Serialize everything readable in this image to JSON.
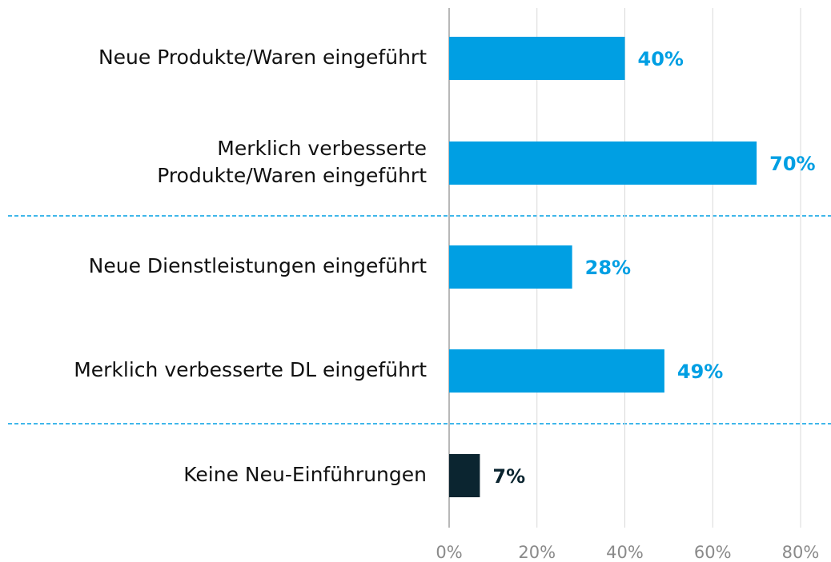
{
  "chart_data": {
    "type": "hbar",
    "categories": [
      "Neue Produkte/Waren eingeführt",
      "Merklich verbesserte\nProdukte/Waren eingeführt",
      "Neue Dienstleistungen eingeführt",
      "Merklich verbesserte DL eingeführt",
      "Keine Neu-Einführungen"
    ],
    "values": [
      40,
      70,
      28,
      49,
      7
    ],
    "value_labels": [
      "40%",
      "70%",
      "28%",
      "49%",
      "7%"
    ],
    "colors": [
      "#009fe3",
      "#009fe3",
      "#009fe3",
      "#009fe3",
      "#0b2530"
    ],
    "xlim": [
      0,
      80
    ],
    "xticks": [
      {
        "value": 0,
        "label": "0%"
      },
      {
        "value": 20,
        "label": "20%"
      },
      {
        "value": 40,
        "label": "40%"
      },
      {
        "value": 60,
        "label": "60%"
      },
      {
        "value": 80,
        "label": "80%"
      }
    ],
    "grid": true
  }
}
